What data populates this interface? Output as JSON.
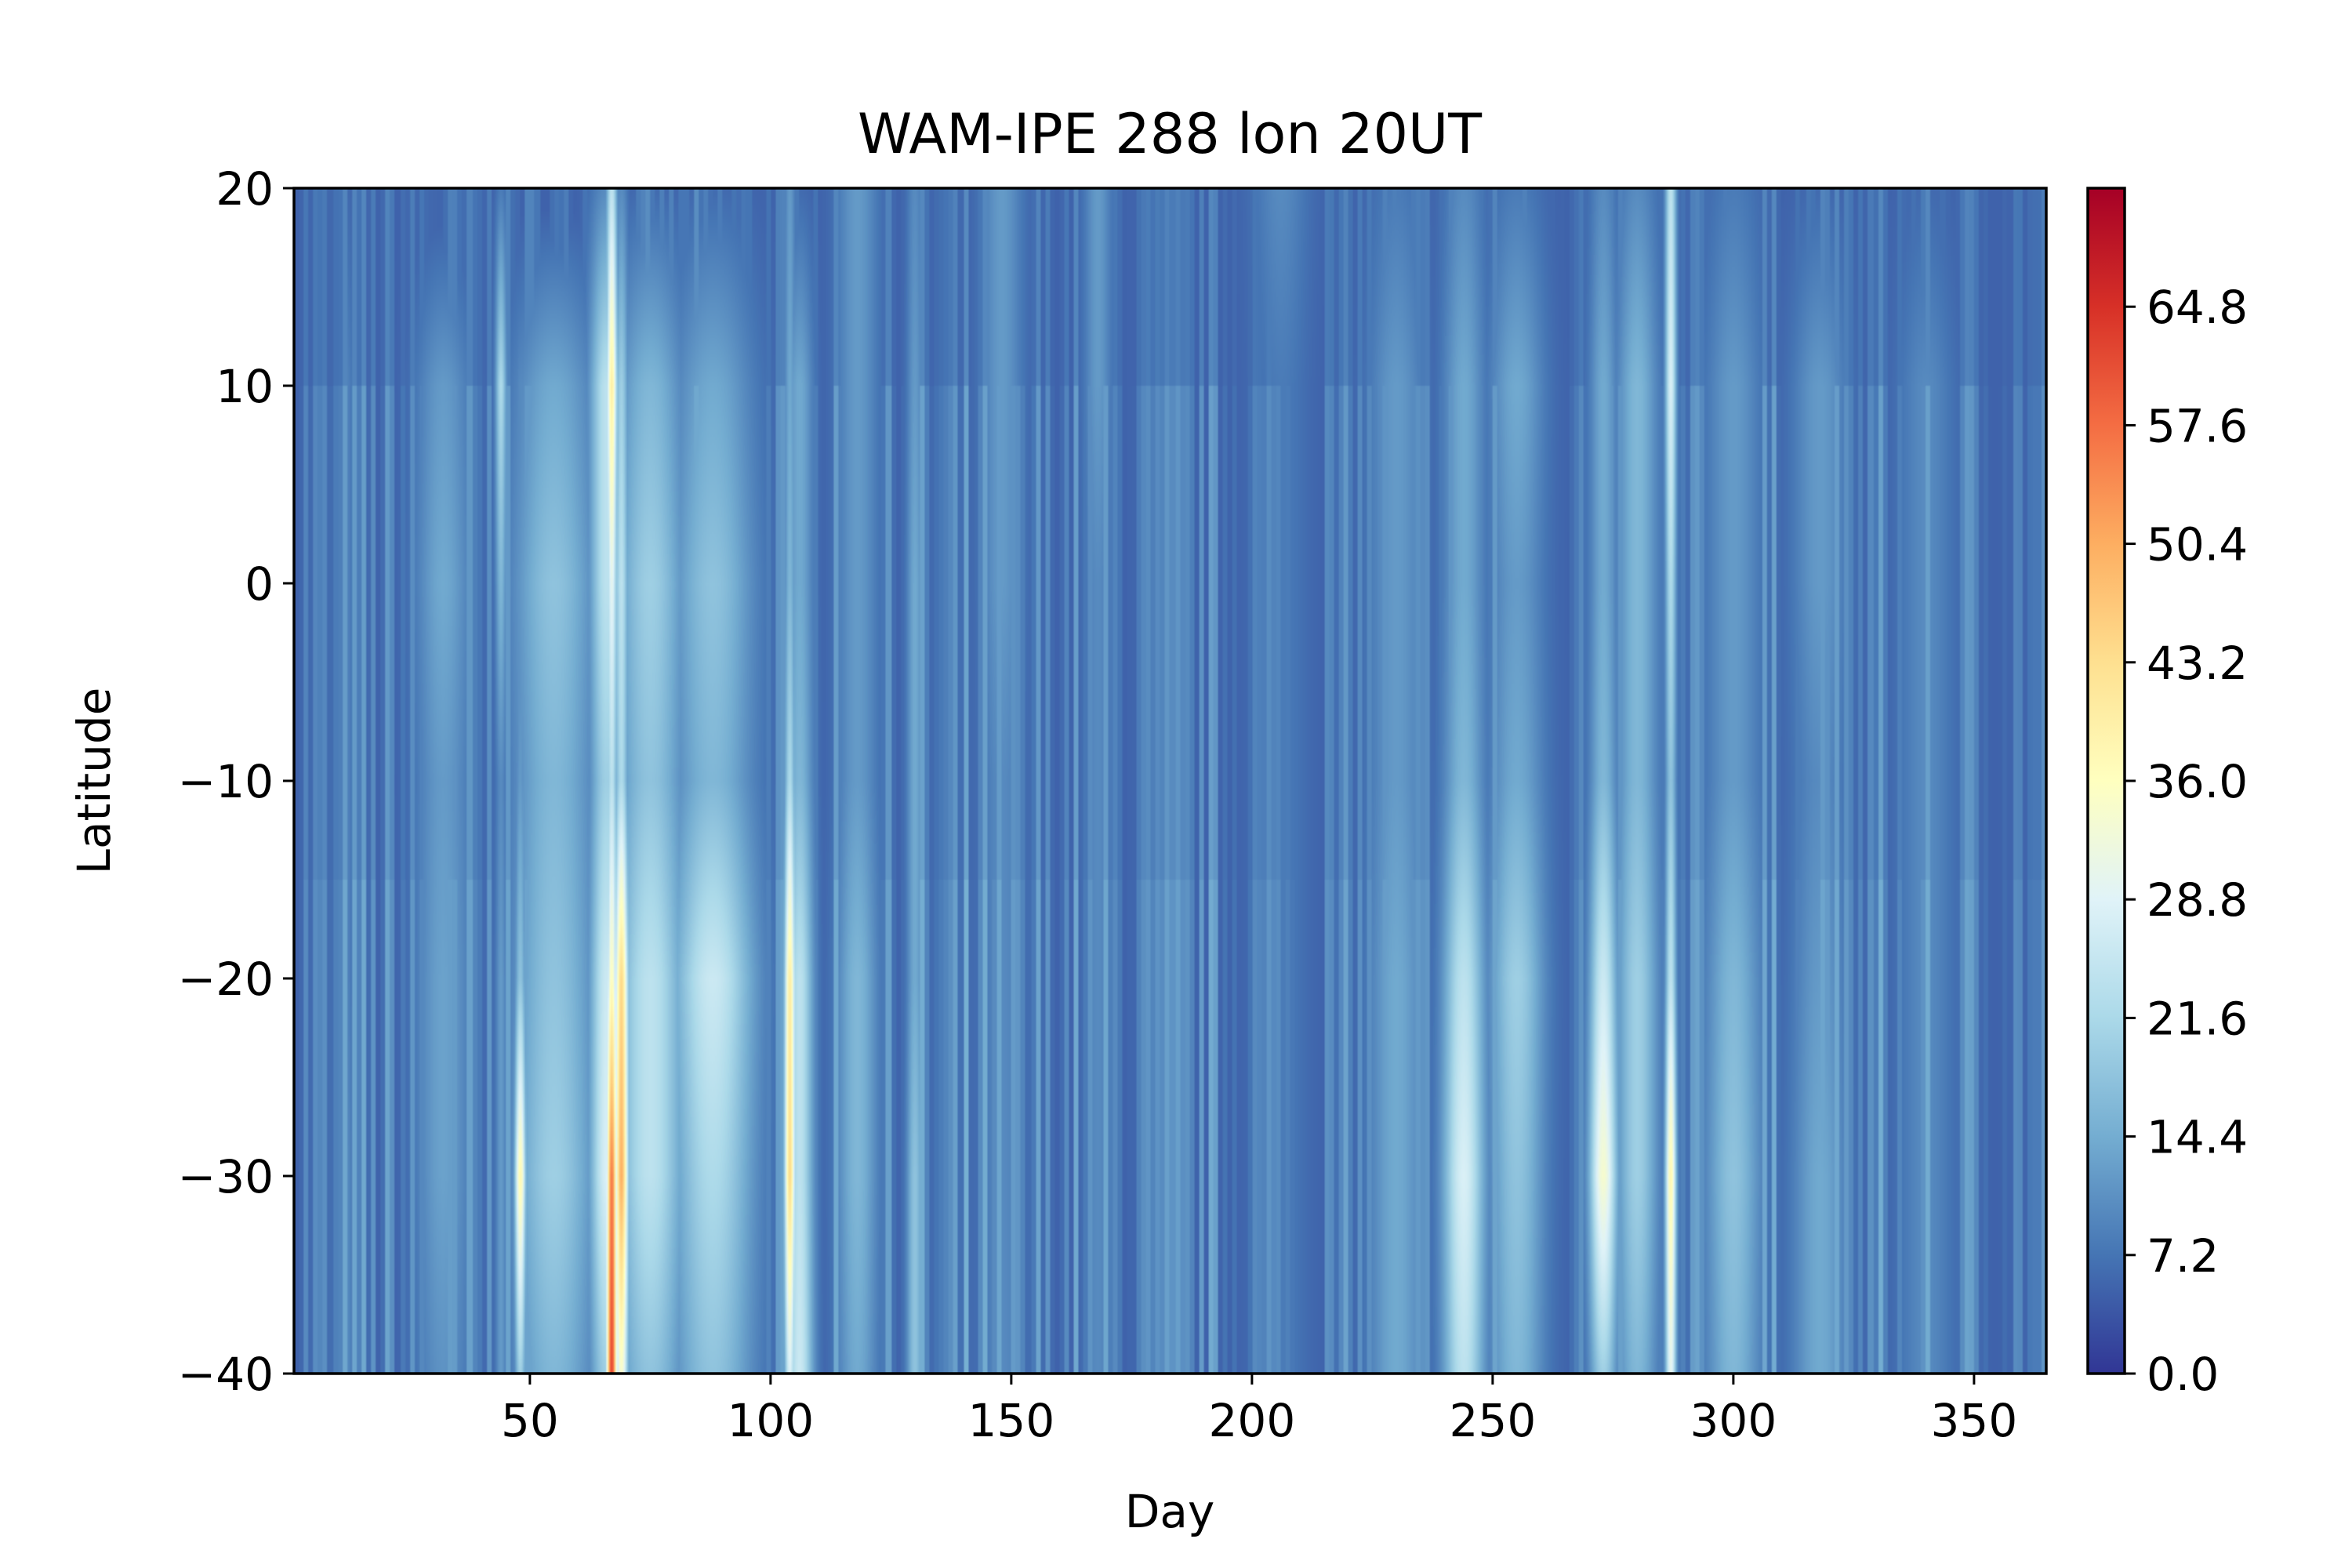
{
  "chart_data": {
    "type": "heatmap",
    "title": "WAM-IPE 288 lon 20UT",
    "xlabel": "Day",
    "ylabel": "Latitude",
    "xlim": [
      1,
      365
    ],
    "ylim": [
      -40,
      20
    ],
    "x_ticks": [
      {
        "value": 50,
        "label": "50"
      },
      {
        "value": 100,
        "label": "100"
      },
      {
        "value": 150,
        "label": "150"
      },
      {
        "value": 200,
        "label": "200"
      },
      {
        "value": 250,
        "label": "250"
      },
      {
        "value": 300,
        "label": "300"
      },
      {
        "value": 350,
        "label": "350"
      }
    ],
    "y_ticks": [
      {
        "value": 20,
        "label": "20"
      },
      {
        "value": 10,
        "label": "10"
      },
      {
        "value": 0,
        "label": "0"
      },
      {
        "value": -10,
        "label": "−10"
      },
      {
        "value": -20,
        "label": "−20"
      },
      {
        "value": -30,
        "label": "−30"
      },
      {
        "value": -40,
        "label": "−40"
      }
    ],
    "colorbar": {
      "colormap": "RdYlBu_r",
      "range": [
        0,
        72
      ],
      "ticks": [
        {
          "value": 0.0,
          "label": "0.0"
        },
        {
          "value": 7.2,
          "label": "7.2"
        },
        {
          "value": 14.4,
          "label": "14.4"
        },
        {
          "value": 21.6,
          "label": "21.6"
        },
        {
          "value": 28.8,
          "label": "28.8"
        },
        {
          "value": 36.0,
          "label": "36.0"
        },
        {
          "value": 43.2,
          "label": "43.2"
        },
        {
          "value": 50.4,
          "label": "50.4"
        },
        {
          "value": 57.6,
          "label": "57.6"
        },
        {
          "value": 64.8,
          "label": "64.8"
        }
      ]
    },
    "field": {
      "latitudes": [
        20,
        10,
        0,
        -10,
        -20,
        -30,
        -40
      ],
      "background_value": 5,
      "features": [
        {
          "day": 12,
          "width": 1.0,
          "profile": [
            6,
            9,
            9,
            9,
            9,
            10,
            10
          ]
        },
        {
          "day": 32,
          "width": 4.0,
          "profile": [
            4,
            12,
            14,
            12,
            13,
            13,
            11
          ]
        },
        {
          "day": 44,
          "width": 0.8,
          "profile": [
            8,
            22,
            16,
            10,
            12,
            12,
            12
          ]
        },
        {
          "day": 48,
          "width": 0.8,
          "profile": [
            4,
            10,
            10,
            12,
            18,
            38,
            20
          ]
        },
        {
          "day": 55,
          "width": 6.0,
          "profile": [
            4,
            14,
            18,
            16,
            18,
            20,
            16
          ]
        },
        {
          "day": 66,
          "width": 2.5,
          "profile": [
            10,
            24,
            24,
            20,
            26,
            28,
            20
          ]
        },
        {
          "day": 67,
          "width": 0.8,
          "profile": [
            24,
            40,
            30,
            24,
            36,
            56,
            62
          ]
        },
        {
          "day": 69,
          "width": 1.0,
          "profile": [
            10,
            20,
            24,
            22,
            44,
            50,
            34
          ]
        },
        {
          "day": 75,
          "width": 5.0,
          "profile": [
            6,
            16,
            20,
            18,
            24,
            24,
            18
          ]
        },
        {
          "day": 88,
          "width": 6.0,
          "profile": [
            6,
            14,
            18,
            16,
            26,
            22,
            18
          ]
        },
        {
          "day": 104,
          "width": 0.8,
          "profile": [
            12,
            14,
            16,
            22,
            40,
            44,
            28
          ]
        },
        {
          "day": 106,
          "width": 2.0,
          "profile": [
            6,
            14,
            14,
            16,
            24,
            24,
            26
          ]
        },
        {
          "day": 118,
          "width": 3.0,
          "profile": [
            12,
            12,
            12,
            12,
            16,
            16,
            14
          ]
        },
        {
          "day": 130,
          "width": 1.2,
          "profile": [
            10,
            12,
            14,
            14,
            14,
            18,
            18
          ]
        },
        {
          "day": 148,
          "width": 3.0,
          "profile": [
            12,
            12,
            12,
            10,
            10,
            10,
            10
          ]
        },
        {
          "day": 168,
          "width": 2.0,
          "profile": [
            12,
            12,
            10,
            10,
            10,
            10,
            10
          ]
        },
        {
          "day": 206,
          "width": 4.0,
          "profile": [
            10,
            8,
            8,
            8,
            8,
            8,
            8
          ]
        },
        {
          "day": 230,
          "width": 4.0,
          "profile": [
            8,
            12,
            12,
            12,
            14,
            14,
            14
          ]
        },
        {
          "day": 244,
          "width": 3.0,
          "profile": [
            10,
            14,
            14,
            16,
            24,
            28,
            24
          ]
        },
        {
          "day": 255,
          "width": 4.0,
          "profile": [
            8,
            14,
            12,
            14,
            20,
            18,
            16
          ]
        },
        {
          "day": 273,
          "width": 2.0,
          "profile": [
            10,
            14,
            14,
            16,
            26,
            34,
            20
          ]
        },
        {
          "day": 280,
          "width": 3.0,
          "profile": [
            10,
            16,
            16,
            16,
            20,
            20,
            16
          ]
        },
        {
          "day": 287,
          "width": 0.8,
          "profile": [
            24,
            28,
            22,
            18,
            24,
            38,
            30
          ]
        },
        {
          "day": 300,
          "width": 4.0,
          "profile": [
            8,
            12,
            12,
            12,
            16,
            18,
            16
          ]
        },
        {
          "day": 318,
          "width": 4.0,
          "profile": [
            6,
            12,
            12,
            10,
            12,
            14,
            14
          ]
        },
        {
          "day": 340,
          "width": 4.0,
          "profile": [
            6,
            10,
            10,
            10,
            10,
            10,
            10
          ]
        }
      ]
    }
  }
}
